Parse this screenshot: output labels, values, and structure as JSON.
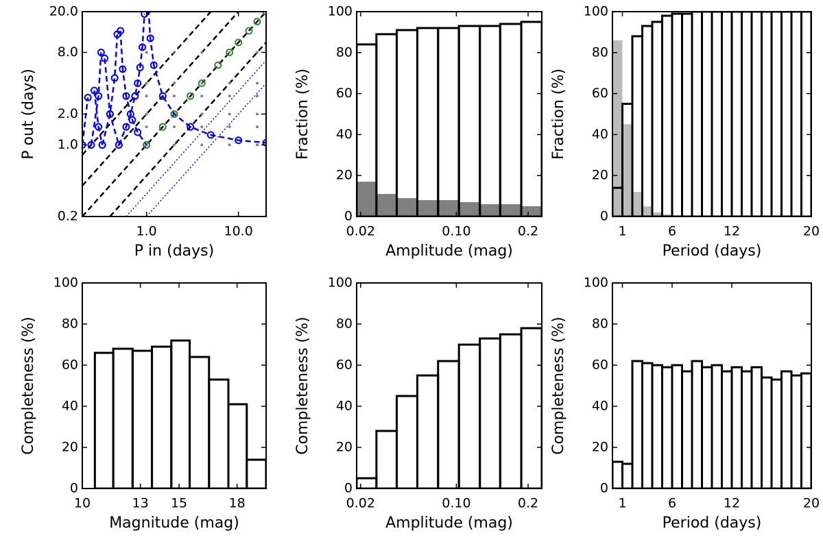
{
  "chart_data": [
    {
      "type": "scatter",
      "xlabel": "P in (days)",
      "ylabel": "P out (days)",
      "xscale": "log",
      "yscale": "log",
      "xlim": [
        0.2,
        20
      ],
      "ylim": [
        0.2,
        20
      ],
      "xticks": [
        {
          "value": 1,
          "label": "1.0"
        },
        {
          "value": 10,
          "label": "10.0"
        }
      ],
      "yticks": [
        {
          "value": 0.2,
          "label": "0.2"
        },
        {
          "value": 1,
          "label": "1.0"
        },
        {
          "value": 2,
          "label": "2.0"
        },
        {
          "value": 8,
          "label": "8.0"
        },
        {
          "value": 20,
          "label": "20.0"
        }
      ],
      "series": [
        {
          "color": "#000000",
          "line": "dashed",
          "x": [
            0.2,
            20
          ],
          "y": [
            0.2,
            20
          ]
        },
        {
          "color": "#000000",
          "line": "dashed",
          "x": [
            0.2,
            10
          ],
          "y": [
            0.4,
            20
          ]
        },
        {
          "color": "#000000",
          "line": "dashed",
          "x": [
            0.2,
            5
          ],
          "y": [
            0.8,
            20
          ]
        },
        {
          "color": "#000000",
          "line": "dashed",
          "x": [
            0.4,
            20
          ],
          "y": [
            0.2,
            10
          ]
        },
        {
          "color": "#0000ff",
          "line": "dotted",
          "x": [
            0.6,
            20
          ],
          "y": [
            0.2,
            6.7
          ]
        },
        {
          "color": "#0000ff",
          "line": "dotted",
          "x": [
            1,
            20
          ],
          "y": [
            0.2,
            4
          ]
        },
        {
          "color": "#808080",
          "marker": "dot",
          "x": [
            1,
            2,
            4,
            8,
            16,
            1,
            2,
            4,
            8,
            16,
            1,
            2,
            4,
            8,
            16,
            1,
            2,
            4,
            8,
            16,
            1,
            2,
            4,
            8,
            16,
            1,
            2,
            4,
            8,
            16
          ],
          "y": [
            1,
            1,
            1,
            1,
            1,
            1.5,
            1.5,
            1.5,
            1.5,
            1.5,
            2,
            2,
            2,
            2,
            2,
            3,
            3,
            3,
            3,
            3,
            4,
            4,
            4,
            4,
            4,
            8,
            8,
            8,
            8,
            8
          ]
        },
        {
          "color": "#0000ff",
          "marker": "circle",
          "line": "dashed",
          "x": [
            0.5,
            0.6,
            0.67,
            0.75,
            0.8,
            0.85,
            0.9,
            0.95
          ],
          "y": [
            1,
            1.5,
            2,
            3,
            4,
            5.7,
            9,
            19
          ]
        },
        {
          "color": "#0000ff",
          "marker": "circle",
          "line": "dashed",
          "x": [
            1.05,
            1.1,
            1.2,
            1.5,
            2,
            3,
            5,
            10,
            20
          ],
          "y": [
            21,
            11,
            6,
            3,
            2,
            1.5,
            1.25,
            1.11,
            1.05
          ]
        },
        {
          "color": "#0000ff",
          "marker": "circle",
          "line": "dashed",
          "x": [
            0.33,
            0.4,
            0.45,
            0.48
          ],
          "y": [
            1,
            2,
            4.5,
            12
          ]
        },
        {
          "color": "#0000ff",
          "marker": "circle",
          "line": "dashed",
          "x": [
            0.52,
            0.55,
            0.6,
            0.7,
            0.8,
            1.0
          ],
          "y": [
            13,
            5.5,
            3,
            1.75,
            1.33,
            1
          ]
        },
        {
          "color": "#0000ff",
          "marker": "circle",
          "line": "dashed",
          "x": [
            0.25,
            0.3,
            0.32
          ],
          "y": [
            1,
            3,
            8
          ]
        },
        {
          "color": "#0000ff",
          "marker": "circle",
          "line": "dashed",
          "x": [
            0.35,
            0.4,
            0.5
          ],
          "y": [
            7,
            2,
            1
          ]
        },
        {
          "color": "#0000ff",
          "marker": "circle",
          "line": "dashed",
          "x": [
            0.2,
            0.23
          ],
          "y": [
            1,
            2.9
          ]
        },
        {
          "color": "#0000ff",
          "marker": "circle",
          "line": "dashed",
          "x": [
            0.27,
            0.3,
            0.33
          ],
          "y": [
            3.4,
            1.5,
            1
          ]
        },
        {
          "color": "#2e8b2e",
          "marker": "circle",
          "x": [
            1,
            1.5,
            2,
            3,
            4,
            6,
            8,
            10,
            13,
            16,
            20
          ],
          "y": [
            1,
            1.5,
            2,
            3,
            4,
            6,
            8,
            10,
            13,
            16,
            20
          ]
        }
      ]
    },
    {
      "type": "histogram",
      "xlabel": "Amplitude (mag)",
      "ylabel": "Fraction (%)",
      "xscale": "sqrt",
      "xlim": [
        0.018,
        0.223
      ],
      "ylim": [
        0,
        100
      ],
      "xticks": [
        0.02,
        {
          "value": 0.1,
          "label": "0.10"
        },
        0.2
      ],
      "yticks": [
        0,
        20,
        40,
        60,
        80,
        100
      ],
      "bins": [
        0.018,
        0.029,
        0.043,
        0.06,
        0.08,
        0.103,
        0.129,
        0.157,
        0.189,
        0.223
      ],
      "series": [
        {
          "color": "#808080",
          "fill": true,
          "values": [
            17,
            11,
            9,
            8,
            8,
            7,
            6,
            6,
            5
          ]
        },
        {
          "color": "#000000",
          "fill": false,
          "values": [
            84,
            89,
            91,
            92,
            92,
            93,
            93,
            94,
            95
          ]
        }
      ]
    },
    {
      "type": "histogram",
      "xlabel": "Period (days)",
      "ylabel": "Fraction (%)",
      "xscale": "linear",
      "xlim": [
        0,
        20
      ],
      "ylim": [
        0,
        100
      ],
      "xticks": [
        1,
        6,
        12,
        20
      ],
      "yticks": [
        0,
        20,
        40,
        60,
        80,
        100
      ],
      "bins": [
        0,
        1,
        2,
        3,
        4,
        5,
        6,
        7,
        8,
        9,
        10,
        11,
        12,
        13,
        14,
        15,
        16,
        17,
        18,
        19,
        20
      ],
      "series": [
        {
          "color": "#bbbbbb",
          "fill": true,
          "values": [
            86,
            45,
            12,
            5,
            2,
            1,
            0,
            0,
            0,
            0,
            0,
            0,
            0,
            0,
            0,
            0,
            0,
            0,
            0,
            0
          ]
        },
        {
          "color": "#000000",
          "fill": false,
          "values": [
            14,
            55,
            88,
            93,
            95,
            98,
            99,
            99,
            100,
            100,
            100,
            100,
            100,
            100,
            100,
            100,
            100,
            100,
            100,
            100
          ]
        }
      ]
    },
    {
      "type": "histogram",
      "xlabel": "Magnitude (mag)",
      "ylabel": "Completeness (%)",
      "xscale": "linear",
      "xlim": [
        10,
        19.5
      ],
      "ylim": [
        0,
        100
      ],
      "xticks": [
        10,
        13,
        15,
        18
      ],
      "yticks": [
        0,
        20,
        40,
        60,
        80,
        100
      ],
      "bins": [
        10.65,
        11.6,
        12.6,
        13.6,
        14.6,
        15.55,
        16.55,
        17.55,
        18.5,
        19.5
      ],
      "series": [
        {
          "color": "#000000",
          "fill": false,
          "values": [
            66,
            68,
            67,
            69,
            72,
            64,
            53,
            41,
            14
          ]
        }
      ]
    },
    {
      "type": "histogram",
      "xlabel": "Amplitude (mag)",
      "ylabel": "Completeness (%)",
      "xscale": "sqrt",
      "xlim": [
        0.018,
        0.223
      ],
      "ylim": [
        0,
        100
      ],
      "xticks": [
        0.02,
        {
          "value": 0.1,
          "label": "0.10"
        },
        0.2
      ],
      "yticks": [
        0,
        20,
        40,
        60,
        80,
        100
      ],
      "bins": [
        0.018,
        0.029,
        0.043,
        0.06,
        0.08,
        0.103,
        0.129,
        0.157,
        0.189,
        0.223
      ],
      "series": [
        {
          "color": "#000000",
          "fill": false,
          "values": [
            5,
            28,
            45,
            55,
            62,
            70,
            73,
            75,
            78
          ]
        }
      ]
    },
    {
      "type": "histogram",
      "xlabel": "Period (days)",
      "ylabel": "Completeness (%)",
      "xscale": "linear",
      "xlim": [
        0,
        20
      ],
      "ylim": [
        0,
        100
      ],
      "xticks": [
        1,
        6,
        12,
        20
      ],
      "yticks": [
        0,
        20,
        40,
        60,
        80,
        100
      ],
      "bins": [
        0,
        1,
        2,
        3,
        4,
        5,
        6,
        7,
        8,
        9,
        10,
        11,
        12,
        13,
        14,
        15,
        16,
        17,
        18,
        19,
        20
      ],
      "series": [
        {
          "color": "#000000",
          "fill": false,
          "values": [
            13,
            12,
            62,
            61,
            60,
            59,
            60,
            57,
            62,
            59,
            60,
            57,
            59,
            57,
            59,
            54,
            53,
            57,
            55,
            56
          ]
        }
      ]
    }
  ]
}
